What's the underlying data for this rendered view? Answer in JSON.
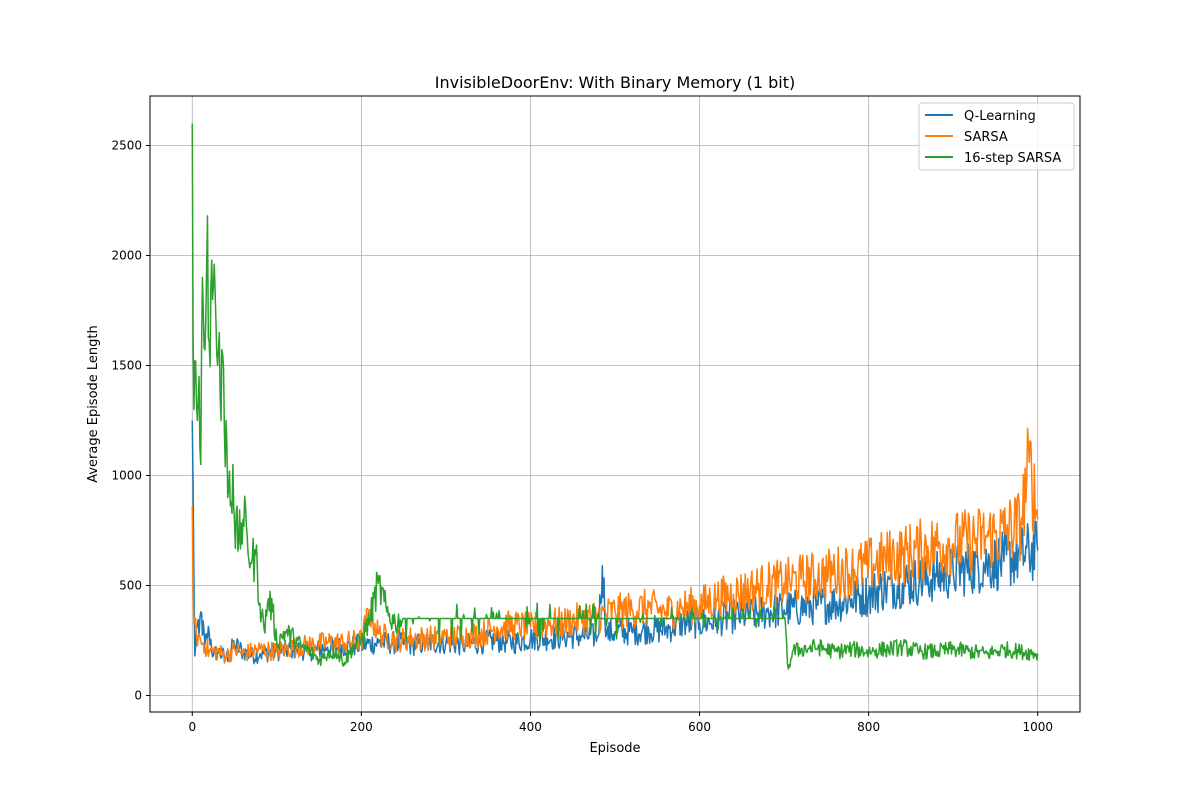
{
  "chart_data": {
    "type": "line",
    "title": "InvisibleDoorEnv: With Binary Memory (1 bit)",
    "xlabel": "Episode",
    "ylabel": "Average Episode Length",
    "xlim": [
      -50,
      1050
    ],
    "ylim": [
      -75,
      2725
    ],
    "x_ticks": [
      0,
      200,
      400,
      600,
      800,
      1000
    ],
    "y_ticks": [
      0,
      500,
      1000,
      1500,
      2000,
      2500
    ],
    "grid": true,
    "legend_position": "top-right",
    "series": [
      {
        "name": "Q-Learning",
        "color": "#1f77b4",
        "points": [
          [
            0,
            1250
          ],
          [
            2,
            520
          ],
          [
            3,
            180
          ],
          [
            5,
            310
          ],
          [
            8,
            270
          ],
          [
            10,
            380
          ],
          [
            15,
            230
          ],
          [
            20,
            290
          ],
          [
            25,
            180
          ],
          [
            30,
            200
          ],
          [
            40,
            170
          ],
          [
            50,
            230
          ],
          [
            60,
            200
          ],
          [
            70,
            180
          ],
          [
            80,
            190
          ],
          [
            100,
            200
          ],
          [
            120,
            210
          ],
          [
            140,
            200
          ],
          [
            160,
            220
          ],
          [
            180,
            220
          ],
          [
            200,
            230
          ],
          [
            220,
            240
          ],
          [
            240,
            240
          ],
          [
            260,
            230
          ],
          [
            280,
            240
          ],
          [
            300,
            240
          ],
          [
            320,
            230
          ],
          [
            340,
            240
          ],
          [
            360,
            250
          ],
          [
            380,
            240
          ],
          [
            400,
            260
          ],
          [
            420,
            260
          ],
          [
            440,
            270
          ],
          [
            460,
            270
          ],
          [
            480,
            270
          ],
          [
            485,
            590
          ],
          [
            490,
            280
          ],
          [
            500,
            290
          ],
          [
            520,
            290
          ],
          [
            540,
            300
          ],
          [
            560,
            300
          ],
          [
            580,
            330
          ],
          [
            600,
            330
          ],
          [
            620,
            340
          ],
          [
            640,
            360
          ],
          [
            660,
            370
          ],
          [
            680,
            380
          ],
          [
            700,
            390
          ],
          [
            720,
            400
          ],
          [
            740,
            410
          ],
          [
            760,
            420
          ],
          [
            780,
            440
          ],
          [
            800,
            460
          ],
          [
            820,
            490
          ],
          [
            840,
            510
          ],
          [
            860,
            520
          ],
          [
            880,
            540
          ],
          [
            900,
            560
          ],
          [
            920,
            580
          ],
          [
            940,
            600
          ],
          [
            960,
            610
          ],
          [
            980,
            640
          ],
          [
            1000,
            660
          ]
        ]
      },
      {
        "name": "SARSA",
        "color": "#ff7f0e",
        "points": [
          [
            0,
            860
          ],
          [
            2,
            320
          ],
          [
            5,
            280
          ],
          [
            10,
            250
          ],
          [
            15,
            230
          ],
          [
            20,
            200
          ],
          [
            30,
            200
          ],
          [
            40,
            180
          ],
          [
            50,
            210
          ],
          [
            60,
            190
          ],
          [
            70,
            200
          ],
          [
            80,
            210
          ],
          [
            100,
            200
          ],
          [
            120,
            220
          ],
          [
            140,
            230
          ],
          [
            160,
            240
          ],
          [
            180,
            240
          ],
          [
            200,
            250
          ],
          [
            210,
            390
          ],
          [
            220,
            280
          ],
          [
            240,
            250
          ],
          [
            260,
            260
          ],
          [
            280,
            260
          ],
          [
            300,
            270
          ],
          [
            320,
            270
          ],
          [
            340,
            280
          ],
          [
            360,
            310
          ],
          [
            380,
            320
          ],
          [
            400,
            310
          ],
          [
            420,
            330
          ],
          [
            440,
            330
          ],
          [
            460,
            350
          ],
          [
            480,
            360
          ],
          [
            500,
            380
          ],
          [
            520,
            390
          ],
          [
            540,
            400
          ],
          [
            560,
            380
          ],
          [
            580,
            400
          ],
          [
            600,
            410
          ],
          [
            620,
            440
          ],
          [
            640,
            460
          ],
          [
            660,
            480
          ],
          [
            680,
            500
          ],
          [
            700,
            510
          ],
          [
            720,
            530
          ],
          [
            740,
            540
          ],
          [
            760,
            560
          ],
          [
            780,
            570
          ],
          [
            800,
            590
          ],
          [
            820,
            620
          ],
          [
            840,
            640
          ],
          [
            860,
            660
          ],
          [
            880,
            680
          ],
          [
            900,
            690
          ],
          [
            920,
            700
          ],
          [
            940,
            720
          ],
          [
            960,
            740
          ],
          [
            980,
            780
          ],
          [
            990,
            1060
          ],
          [
            1000,
            800
          ]
        ]
      },
      {
        "name": "16-step SARSA",
        "color": "#2ca02c",
        "points": [
          [
            0,
            2600
          ],
          [
            2,
            1300
          ],
          [
            4,
            1520
          ],
          [
            6,
            1250
          ],
          [
            8,
            1450
          ],
          [
            10,
            1050
          ],
          [
            12,
            1900
          ],
          [
            14,
            1580
          ],
          [
            16,
            1710
          ],
          [
            18,
            2180
          ],
          [
            20,
            1610
          ],
          [
            22,
            1850
          ],
          [
            24,
            1800
          ],
          [
            26,
            1960
          ],
          [
            28,
            1700
          ],
          [
            30,
            1500
          ],
          [
            32,
            1650
          ],
          [
            34,
            1250
          ],
          [
            36,
            1550
          ],
          [
            38,
            1200
          ],
          [
            40,
            1250
          ],
          [
            42,
            900
          ],
          [
            44,
            1020
          ],
          [
            46,
            880
          ],
          [
            48,
            1050
          ],
          [
            50,
            780
          ],
          [
            55,
            700
          ],
          [
            60,
            800
          ],
          [
            65,
            720
          ],
          [
            70,
            600
          ],
          [
            75,
            640
          ],
          [
            80,
            420
          ],
          [
            85,
            300
          ],
          [
            90,
            440
          ],
          [
            95,
            380
          ],
          [
            100,
            240
          ],
          [
            110,
            290
          ],
          [
            120,
            260
          ],
          [
            130,
            220
          ],
          [
            140,
            200
          ],
          [
            150,
            160
          ],
          [
            160,
            190
          ],
          [
            170,
            200
          ],
          [
            180,
            150
          ],
          [
            190,
            220
          ],
          [
            200,
            250
          ],
          [
            210,
            350
          ],
          [
            220,
            510
          ],
          [
            230,
            380
          ],
          [
            240,
            330
          ],
          [
            250,
            350
          ],
          [
            300,
            350
          ],
          [
            350,
            350
          ],
          [
            400,
            350
          ],
          [
            450,
            350
          ],
          [
            500,
            350
          ],
          [
            550,
            350
          ],
          [
            600,
            350
          ],
          [
            650,
            350
          ],
          [
            700,
            350
          ],
          [
            705,
            120
          ],
          [
            710,
            200
          ],
          [
            720,
            210
          ],
          [
            740,
            220
          ],
          [
            760,
            200
          ],
          [
            780,
            210
          ],
          [
            800,
            200
          ],
          [
            820,
            210
          ],
          [
            840,
            220
          ],
          [
            860,
            200
          ],
          [
            880,
            200
          ],
          [
            900,
            210
          ],
          [
            920,
            200
          ],
          [
            940,
            190
          ],
          [
            960,
            210
          ],
          [
            980,
            200
          ],
          [
            1000,
            190
          ]
        ]
      }
    ]
  }
}
